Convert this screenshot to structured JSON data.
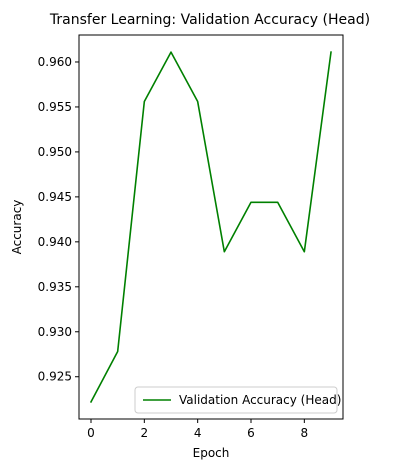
{
  "chart_data": {
    "type": "line",
    "title": "Transfer Learning: Validation Accuracy (Head)",
    "xlabel": "Epoch",
    "ylabel": "Accuracy",
    "x": [
      0,
      1,
      2,
      3,
      4,
      5,
      6,
      7,
      8,
      9
    ],
    "series": [
      {
        "name": "Validation Accuracy (Head)",
        "color": "#008000",
        "values": [
          0.9222,
          0.9278,
          0.9556,
          0.9611,
          0.9556,
          0.9389,
          0.9444,
          0.9444,
          0.9389,
          0.9611
        ]
      }
    ],
    "xlim": [
      -0.45,
      9.45
    ],
    "ylim": [
      0.9203,
      0.963
    ],
    "xticks": [
      0,
      2,
      4,
      6,
      8
    ],
    "xtick_labels": [
      "0",
      "2",
      "4",
      "6",
      "8"
    ],
    "yticks": [
      0.925,
      0.93,
      0.935,
      0.94,
      0.945,
      0.95,
      0.955,
      0.96
    ],
    "ytick_labels": [
      "0.925",
      "0.930",
      "0.935",
      "0.940",
      "0.945",
      "0.950",
      "0.955",
      "0.960"
    ],
    "grid": false,
    "legend_position": "lower right"
  }
}
